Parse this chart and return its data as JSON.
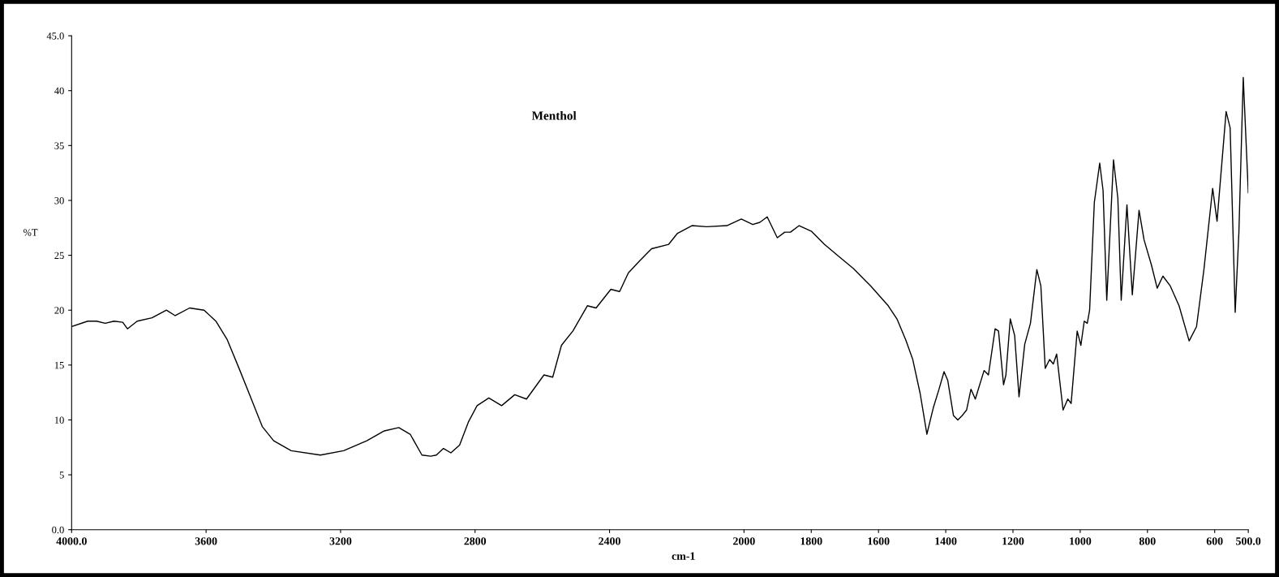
{
  "chart_data": {
    "type": "line",
    "title": "Menthol",
    "xlabel": "cm-1",
    "ylabel": "%T",
    "xlim": [
      4000,
      500
    ],
    "ylim": [
      0,
      45
    ],
    "xticks": [
      {
        "value": 4000,
        "label": "4000.0"
      },
      3600,
      3200,
      2800,
      2400,
      2000,
      1800,
      1600,
      1400,
      1200,
      1000,
      800,
      600,
      {
        "value": 500,
        "label": "500.0"
      }
    ],
    "yticks": [
      {
        "value": 0,
        "label": "0.0"
      },
      5,
      10,
      15,
      20,
      25,
      30,
      35,
      40,
      {
        "value": 45,
        "label": "45.0"
      }
    ],
    "grid": false,
    "legend": false,
    "marker": "none",
    "line_style": "solid",
    "series": [
      {
        "color": "#000000",
        "x": [
          4000,
          3952,
          3926,
          3900,
          3874,
          3848,
          3834,
          3805,
          3761,
          3718,
          3692,
          3649,
          3606,
          3571,
          3537,
          3502,
          3468,
          3433,
          3399,
          3347,
          3260,
          3191,
          3122,
          3070,
          3027,
          2993,
          2958,
          2932,
          2915,
          2894,
          2872,
          2846,
          2820,
          2794,
          2759,
          2721,
          2682,
          2647,
          2595,
          2569,
          2543,
          2509,
          2466,
          2440,
          2396,
          2370,
          2344,
          2310,
          2275,
          2224,
          2198,
          2155,
          2111,
          2051,
          2008,
          1974,
          1953,
          1931,
          1901,
          1879,
          1862,
          1836,
          1800,
          1761,
          1718,
          1675,
          1623,
          1571,
          1545,
          1519,
          1498,
          1476,
          1456,
          1437,
          1420,
          1405,
          1394,
          1377,
          1364,
          1351,
          1338,
          1325,
          1312,
          1286,
          1273,
          1253,
          1243,
          1228,
          1221,
          1208,
          1195,
          1182,
          1165,
          1148,
          1129,
          1117,
          1104,
          1091,
          1080,
          1070,
          1051,
          1037,
          1027,
          1009,
          998,
          988,
          979,
          972,
          958,
          942,
          932,
          921,
          901,
          888,
          878,
          861,
          845,
          825,
          810,
          788,
          771,
          754,
          732,
          706,
          676,
          654,
          632,
          606,
          593,
          566,
          554,
          539,
          528,
          515,
          500
        ],
        "values": [
          18.5,
          19.0,
          19.0,
          18.8,
          19.0,
          18.9,
          18.3,
          19.0,
          19.3,
          20.0,
          19.5,
          20.2,
          20.0,
          19.0,
          17.3,
          14.7,
          12.1,
          9.4,
          8.1,
          7.2,
          6.8,
          7.2,
          8.1,
          9.0,
          9.3,
          8.7,
          6.8,
          6.7,
          6.8,
          7.4,
          7.0,
          7.7,
          9.8,
          11.3,
          12.0,
          11.3,
          12.3,
          11.9,
          14.1,
          13.9,
          16.8,
          18.1,
          20.4,
          20.2,
          21.9,
          21.7,
          23.4,
          24.5,
          25.6,
          26.0,
          27.0,
          27.7,
          27.6,
          27.7,
          28.3,
          27.8,
          28.0,
          28.5,
          26.6,
          27.1,
          27.1,
          27.7,
          27.2,
          26.0,
          24.9,
          23.8,
          22.2,
          20.4,
          19.2,
          17.3,
          15.5,
          12.4,
          8.7,
          11.1,
          12.8,
          14.4,
          13.6,
          10.4,
          10.0,
          10.4,
          10.9,
          12.8,
          11.9,
          14.5,
          14.1,
          18.3,
          18.1,
          13.2,
          14.1,
          19.2,
          17.7,
          12.1,
          16.9,
          18.8,
          23.7,
          22.2,
          14.7,
          15.5,
          15.1,
          16.0,
          10.9,
          11.9,
          11.5,
          18.1,
          16.8,
          19.0,
          18.8,
          20.0,
          29.8,
          33.4,
          30.9,
          20.9,
          33.7,
          30.2,
          20.9,
          29.6,
          21.4,
          29.1,
          26.4,
          24.1,
          22.0,
          23.1,
          22.2,
          20.4,
          17.2,
          18.5,
          23.7,
          31.1,
          28.1,
          38.1,
          36.6,
          19.8,
          27.1,
          41.2,
          30.7
        ]
      }
    ]
  }
}
